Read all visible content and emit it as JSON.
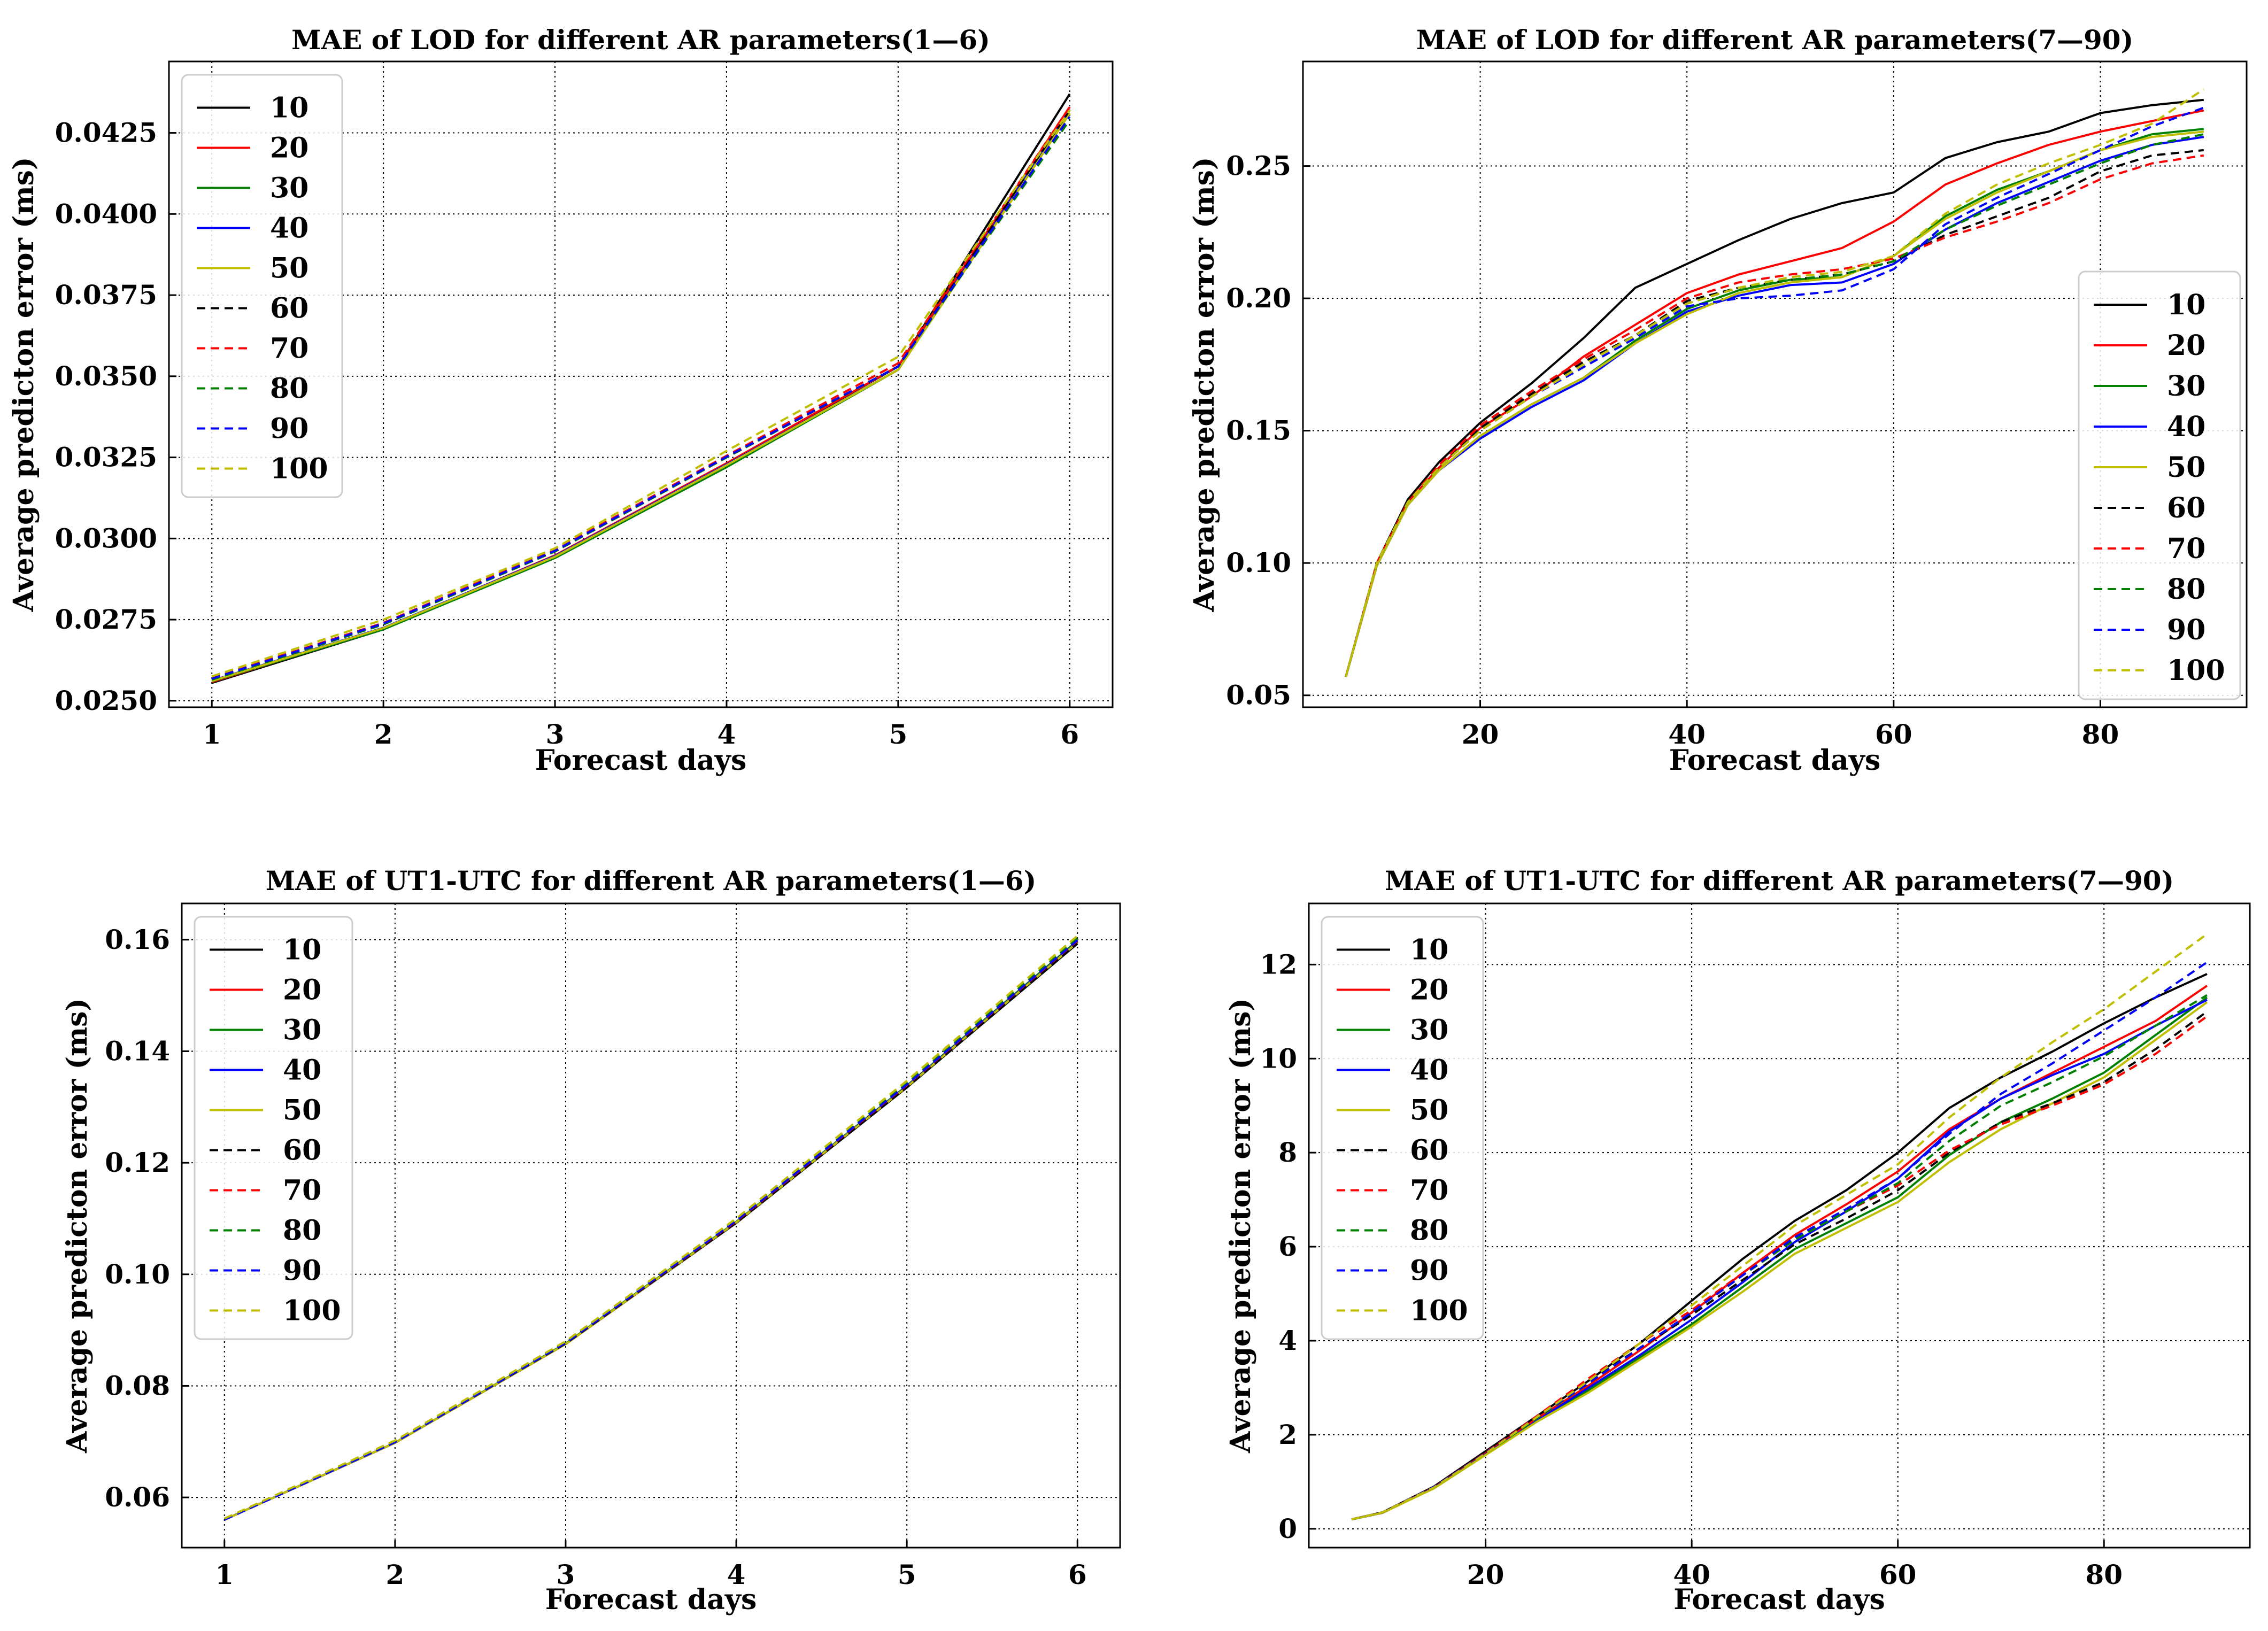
{
  "chart_data": [
    {
      "type": "line",
      "title": "MAE of LOD for different AR parameters(1—6)",
      "xlabel": "Forecast days",
      "ylabel": "Average predicton error (ms)",
      "xlim": [
        0.75,
        6.25
      ],
      "ylim": [
        0.0248,
        0.0447
      ],
      "xticks": [
        1,
        2,
        3,
        4,
        5,
        6
      ],
      "yticks": [
        0.025,
        0.0275,
        0.03,
        0.0325,
        0.035,
        0.0375,
        0.04,
        0.0425
      ],
      "ytick_labels": [
        "0.0250",
        "0.0275",
        "0.0300",
        "0.0325",
        "0.0350",
        "0.0375",
        "0.0400",
        "0.0425"
      ],
      "grid": true,
      "legend_position": "top-left",
      "x": [
        1,
        2,
        3,
        4,
        5,
        6
      ],
      "series": [
        {
          "name": "10",
          "color": "#000000",
          "style": "solid",
          "values": [
            0.02555,
            0.0272,
            0.02945,
            0.0323,
            0.0353,
            0.0437
          ]
        },
        {
          "name": "20",
          "color": "#ff0000",
          "style": "solid",
          "values": [
            0.02558,
            0.02723,
            0.02948,
            0.03232,
            0.03531,
            0.0433
          ]
        },
        {
          "name": "30",
          "color": "#008000",
          "style": "solid",
          "values": [
            0.0256,
            0.0272,
            0.0294,
            0.0322,
            0.0352,
            0.0431
          ]
        },
        {
          "name": "40",
          "color": "#0000ff",
          "style": "solid",
          "values": [
            0.02562,
            0.02725,
            0.02946,
            0.03228,
            0.0352,
            0.0432
          ]
        },
        {
          "name": "50",
          "color": "#bfbf00",
          "style": "solid",
          "values": [
            0.02561,
            0.02724,
            0.02944,
            0.03226,
            0.0352,
            0.0431
          ]
        },
        {
          "name": "60",
          "color": "#000000",
          "style": "dashed",
          "values": [
            0.0257,
            0.0274,
            0.0296,
            0.0325,
            0.0353,
            0.0432
          ]
        },
        {
          "name": "70",
          "color": "#ff0000",
          "style": "dashed",
          "values": [
            0.0257,
            0.0274,
            0.02965,
            0.03255,
            0.0354,
            0.0433
          ]
        },
        {
          "name": "80",
          "color": "#008000",
          "style": "dashed",
          "values": [
            0.02565,
            0.02735,
            0.0296,
            0.0325,
            0.0353,
            0.0429
          ]
        },
        {
          "name": "90",
          "color": "#0000ff",
          "style": "dashed",
          "values": [
            0.02568,
            0.02738,
            0.02962,
            0.03252,
            0.0353,
            0.043
          ]
        },
        {
          "name": "100",
          "color": "#bfbf00",
          "style": "dashed",
          "values": [
            0.02575,
            0.0275,
            0.0297,
            0.0327,
            0.0356,
            0.0432
          ]
        }
      ]
    },
    {
      "type": "line",
      "title": "MAE of LOD for different AR parameters(7—90)",
      "xlabel": "Forecast days",
      "ylabel": "Average predicton error (ms)",
      "xlim": [
        2.85,
        94.15
      ],
      "ylim": [
        0.0455,
        0.2895
      ],
      "xticks": [
        20,
        40,
        60,
        80
      ],
      "yticks": [
        0.05,
        0.1,
        0.15,
        0.2,
        0.25
      ],
      "ytick_labels": [
        "0.05",
        "0.10",
        "0.15",
        "0.20",
        "0.25"
      ],
      "grid": true,
      "legend_position": "right",
      "x": [
        7,
        10,
        13,
        16,
        20,
        25,
        30,
        35,
        40,
        45,
        50,
        55,
        60,
        65,
        70,
        75,
        80,
        85,
        90
      ],
      "series": [
        {
          "name": "10",
          "color": "#000000",
          "style": "solid",
          "values": [
            0.057,
            0.1,
            0.124,
            0.138,
            0.153,
            0.168,
            0.185,
            0.204,
            0.213,
            0.222,
            0.23,
            0.236,
            0.24,
            0.253,
            0.259,
            0.263,
            0.27,
            0.273,
            0.275
          ]
        },
        {
          "name": "20",
          "color": "#ff0000",
          "style": "solid",
          "values": [
            0.057,
            0.1,
            0.123,
            0.136,
            0.151,
            0.163,
            0.178,
            0.19,
            0.202,
            0.209,
            0.214,
            0.219,
            0.229,
            0.243,
            0.251,
            0.258,
            0.263,
            0.267,
            0.271
          ]
        },
        {
          "name": "30",
          "color": "#008000",
          "style": "solid",
          "values": [
            0.057,
            0.099,
            0.122,
            0.135,
            0.148,
            0.16,
            0.17,
            0.184,
            0.196,
            0.203,
            0.207,
            0.208,
            0.216,
            0.231,
            0.241,
            0.248,
            0.256,
            0.262,
            0.264
          ]
        },
        {
          "name": "40",
          "color": "#0000ff",
          "style": "solid",
          "values": [
            0.057,
            0.099,
            0.122,
            0.135,
            0.147,
            0.159,
            0.169,
            0.183,
            0.195,
            0.201,
            0.205,
            0.206,
            0.213,
            0.226,
            0.236,
            0.244,
            0.252,
            0.258,
            0.261
          ]
        },
        {
          "name": "50",
          "color": "#bfbf00",
          "style": "solid",
          "values": [
            0.057,
            0.099,
            0.122,
            0.135,
            0.148,
            0.16,
            0.17,
            0.183,
            0.194,
            0.202,
            0.206,
            0.208,
            0.216,
            0.23,
            0.24,
            0.248,
            0.256,
            0.261,
            0.263
          ]
        },
        {
          "name": "60",
          "color": "#000000",
          "style": "dashed",
          "values": [
            0.057,
            0.1,
            0.123,
            0.136,
            0.151,
            0.164,
            0.176,
            0.186,
            0.199,
            0.204,
            0.207,
            0.209,
            0.214,
            0.224,
            0.231,
            0.238,
            0.248,
            0.254,
            0.256
          ]
        },
        {
          "name": "70",
          "color": "#ff0000",
          "style": "dashed",
          "values": [
            0.057,
            0.1,
            0.123,
            0.137,
            0.152,
            0.165,
            0.177,
            0.188,
            0.2,
            0.206,
            0.209,
            0.211,
            0.215,
            0.223,
            0.229,
            0.236,
            0.245,
            0.251,
            0.254
          ]
        },
        {
          "name": "80",
          "color": "#008000",
          "style": "dashed",
          "values": [
            0.057,
            0.1,
            0.123,
            0.136,
            0.15,
            0.163,
            0.175,
            0.186,
            0.198,
            0.204,
            0.207,
            0.209,
            0.214,
            0.226,
            0.235,
            0.243,
            0.251,
            0.258,
            0.262
          ]
        },
        {
          "name": "90",
          "color": "#0000ff",
          "style": "dashed",
          "values": [
            0.057,
            0.1,
            0.123,
            0.136,
            0.15,
            0.163,
            0.174,
            0.185,
            0.197,
            0.2,
            0.201,
            0.203,
            0.211,
            0.228,
            0.238,
            0.247,
            0.256,
            0.265,
            0.272
          ]
        },
        {
          "name": "100",
          "color": "#bfbf00",
          "style": "dashed",
          "values": [
            0.057,
            0.1,
            0.123,
            0.136,
            0.15,
            0.163,
            0.175,
            0.186,
            0.198,
            0.204,
            0.208,
            0.21,
            0.216,
            0.232,
            0.243,
            0.251,
            0.258,
            0.266,
            0.279
          ]
        }
      ]
    },
    {
      "type": "line",
      "title": "MAE of UT1-UTC for different AR parameters(1—6)",
      "xlabel": "Forecast days",
      "ylabel": "Average predicton error (ms)",
      "xlim": [
        0.75,
        6.25
      ],
      "ylim": [
        0.051,
        0.1665
      ],
      "xticks": [
        1,
        2,
        3,
        4,
        5,
        6
      ],
      "yticks": [
        0.06,
        0.08,
        0.1,
        0.12,
        0.14,
        0.16
      ],
      "ytick_labels": [
        "0.06",
        "0.08",
        "0.10",
        "0.12",
        "0.14",
        "0.16"
      ],
      "grid": true,
      "legend_position": "top-left",
      "x": [
        1,
        2,
        3,
        4,
        5,
        6
      ],
      "series": [
        {
          "name": "10",
          "color": "#000000",
          "style": "solid",
          "values": [
            0.056,
            0.0698,
            0.0875,
            0.1092,
            0.1335,
            0.1593
          ]
        },
        {
          "name": "20",
          "color": "#ff0000",
          "style": "solid",
          "values": [
            0.056,
            0.0698,
            0.0875,
            0.1093,
            0.1337,
            0.1596
          ]
        },
        {
          "name": "30",
          "color": "#008000",
          "style": "solid",
          "values": [
            0.056,
            0.0698,
            0.0876,
            0.1094,
            0.1338,
            0.1598
          ]
        },
        {
          "name": "40",
          "color": "#0000ff",
          "style": "solid",
          "values": [
            0.056,
            0.0698,
            0.0875,
            0.1093,
            0.1337,
            0.1596
          ]
        },
        {
          "name": "50",
          "color": "#bfbf00",
          "style": "solid",
          "values": [
            0.056,
            0.0698,
            0.0875,
            0.1093,
            0.1336,
            0.1595
          ]
        },
        {
          "name": "60",
          "color": "#000000",
          "style": "dashed",
          "values": [
            0.056,
            0.0699,
            0.0876,
            0.1093,
            0.1335,
            0.1593
          ]
        },
        {
          "name": "70",
          "color": "#ff0000",
          "style": "dashed",
          "values": [
            0.056,
            0.0699,
            0.0877,
            0.1095,
            0.1339,
            0.1598
          ]
        },
        {
          "name": "80",
          "color": "#008000",
          "style": "dashed",
          "values": [
            0.056,
            0.07,
            0.0878,
            0.1097,
            0.1342,
            0.1602
          ]
        },
        {
          "name": "90",
          "color": "#0000ff",
          "style": "dashed",
          "values": [
            0.056,
            0.0699,
            0.0877,
            0.1096,
            0.134,
            0.1599
          ]
        },
        {
          "name": "100",
          "color": "#bfbf00",
          "style": "dashed",
          "values": [
            0.0562,
            0.0702,
            0.088,
            0.11,
            0.1347,
            0.1607
          ]
        }
      ]
    },
    {
      "type": "line",
      "title": "MAE of UT1-UTC for different AR parameters(7—90)",
      "xlabel": "Forecast days",
      "ylabel": "Average predicton error (ms)",
      "xlim": [
        2.85,
        94.15
      ],
      "ylim": [
        -0.4,
        13.3
      ],
      "xticks": [
        20,
        40,
        60,
        80
      ],
      "yticks": [
        0,
        2,
        4,
        6,
        8,
        10,
        12
      ],
      "ytick_labels": [
        "0",
        "2",
        "4",
        "6",
        "8",
        "10",
        "12"
      ],
      "grid": true,
      "legend_position": "top-left",
      "x": [
        7,
        10,
        15,
        20,
        25,
        30,
        35,
        40,
        45,
        50,
        55,
        60,
        65,
        70,
        75,
        80,
        85,
        90
      ],
      "series": [
        {
          "name": "10",
          "color": "#000000",
          "style": "solid",
          "values": [
            0.2,
            0.35,
            0.9,
            1.65,
            2.4,
            3.15,
            3.95,
            4.85,
            5.75,
            6.55,
            7.2,
            8.0,
            8.95,
            9.6,
            10.15,
            10.75,
            11.3,
            11.8
          ]
        },
        {
          "name": "20",
          "color": "#ff0000",
          "style": "solid",
          "values": [
            0.2,
            0.34,
            0.88,
            1.6,
            2.35,
            3.05,
            3.8,
            4.6,
            5.45,
            6.25,
            6.9,
            7.6,
            8.5,
            9.15,
            9.7,
            10.25,
            10.8,
            11.55
          ]
        },
        {
          "name": "30",
          "color": "#008000",
          "style": "solid",
          "values": [
            0.2,
            0.34,
            0.87,
            1.58,
            2.3,
            2.95,
            3.65,
            4.35,
            5.15,
            5.95,
            6.5,
            7.05,
            7.95,
            8.65,
            9.15,
            9.7,
            10.5,
            11.3
          ]
        },
        {
          "name": "40",
          "color": "#0000ff",
          "style": "solid",
          "values": [
            0.2,
            0.34,
            0.87,
            1.58,
            2.3,
            3.0,
            3.7,
            4.45,
            5.25,
            6.1,
            6.75,
            7.45,
            8.45,
            9.15,
            9.65,
            10.1,
            10.7,
            11.25
          ]
        },
        {
          "name": "50",
          "color": "#bfbf00",
          "style": "solid",
          "values": [
            0.2,
            0.34,
            0.86,
            1.57,
            2.28,
            2.9,
            3.6,
            4.3,
            5.05,
            5.85,
            6.4,
            6.95,
            7.8,
            8.5,
            9.05,
            9.6,
            10.4,
            11.2
          ]
        },
        {
          "name": "60",
          "color": "#000000",
          "style": "dashed",
          "values": [
            0.2,
            0.35,
            0.89,
            1.62,
            2.4,
            3.15,
            3.85,
            4.55,
            5.3,
            6.05,
            6.6,
            7.2,
            8.0,
            8.65,
            9.05,
            9.5,
            10.2,
            11.0
          ]
        },
        {
          "name": "70",
          "color": "#ff0000",
          "style": "dashed",
          "values": [
            0.2,
            0.35,
            0.89,
            1.62,
            2.4,
            3.2,
            3.95,
            4.65,
            5.45,
            6.2,
            6.75,
            7.3,
            8.05,
            8.6,
            9.0,
            9.45,
            10.1,
            10.9
          ]
        },
        {
          "name": "80",
          "color": "#008000",
          "style": "dashed",
          "values": [
            0.2,
            0.35,
            0.88,
            1.6,
            2.35,
            3.1,
            3.85,
            4.6,
            5.4,
            6.15,
            6.75,
            7.35,
            8.25,
            9.0,
            9.5,
            10.05,
            10.7,
            11.35
          ]
        },
        {
          "name": "90",
          "color": "#0000ff",
          "style": "dashed",
          "values": [
            0.2,
            0.35,
            0.89,
            1.61,
            2.38,
            3.1,
            3.85,
            4.6,
            5.4,
            6.2,
            6.8,
            7.45,
            8.4,
            9.25,
            9.9,
            10.6,
            11.3,
            12.05
          ]
        },
        {
          "name": "100",
          "color": "#bfbf00",
          "style": "dashed",
          "values": [
            0.2,
            0.35,
            0.88,
            1.6,
            2.38,
            3.15,
            3.95,
            4.75,
            5.6,
            6.45,
            7.1,
            7.75,
            8.75,
            9.6,
            10.35,
            11.05,
            11.85,
            12.65
          ]
        }
      ]
    }
  ]
}
